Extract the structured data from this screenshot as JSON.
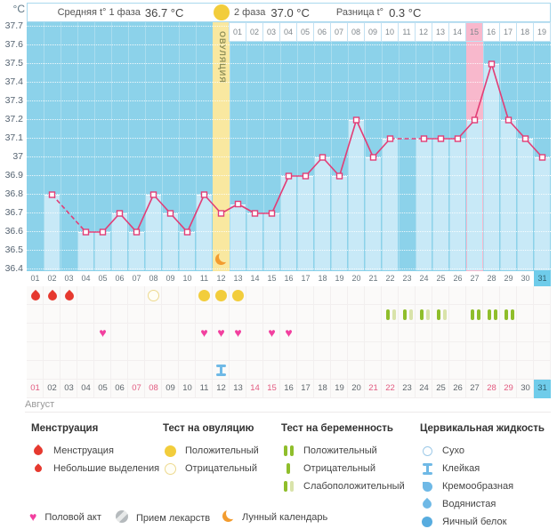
{
  "header": {
    "unit": "°C",
    "phase1_label": "Средняя t° 1 фаза",
    "phase1_value": "36.7 °C",
    "phase2_label": "2 фаза",
    "phase2_value": "37.0 °C",
    "diff_label": "Разница t°",
    "diff_value": "0.3 °C",
    "ovulation_label": "ОВУЛЯЦИЯ"
  },
  "month_label": "Август",
  "chart_data": {
    "type": "line",
    "title": "Basal body temperature cycle chart",
    "unit": "°C",
    "ylim": [
      36.4,
      37.7
    ],
    "ytick_step": 0.1,
    "x_days": [
      1,
      2,
      3,
      4,
      5,
      6,
      7,
      8,
      9,
      10,
      11,
      12,
      13,
      14,
      15,
      16,
      17,
      18,
      19,
      20,
      21,
      22,
      23,
      24,
      25,
      26,
      27,
      28,
      29,
      30,
      31
    ],
    "temperatures_c": [
      null,
      36.8,
      null,
      36.6,
      36.6,
      36.7,
      36.6,
      36.8,
      36.7,
      36.6,
      36.8,
      36.7,
      36.75,
      36.7,
      36.7,
      36.9,
      36.9,
      37.0,
      36.9,
      37.2,
      37.0,
      37.1,
      null,
      37.1,
      37.1,
      37.1,
      37.2,
      37.5,
      37.2,
      37.1,
      37.0
    ],
    "ovulation_day": 12,
    "period_expected_day": 27,
    "today_day": 31,
    "phase2_day_labels": [
      "01",
      "02",
      "03",
      "04",
      "05",
      "06",
      "07",
      "08",
      "09",
      "10",
      "11",
      "12",
      "13",
      "14",
      "15",
      "16",
      "17",
      "18",
      "19"
    ],
    "phase2_highlight_label": "15",
    "weekend_days": [
      1,
      7,
      8,
      14,
      15,
      21,
      22,
      28,
      29
    ],
    "events": {
      "menstruation_days": [
        1,
        2,
        3
      ],
      "ovulation_test_negative_days": [
        8
      ],
      "ovulation_test_positive_days": [
        11,
        12,
        13
      ],
      "pregnancy_test_weak_positive_days": [
        22,
        23,
        24,
        25
      ],
      "pregnancy_test_positive_days": [
        27,
        28,
        29
      ],
      "intercourse_days": [
        5,
        11,
        12,
        13,
        15,
        16
      ],
      "sticky_cervical_fluid_days": [
        12
      ],
      "lunar_calendar_day": 12
    }
  },
  "colors": {
    "chart_bg": "#8CD2EA",
    "bar": "#C8E9F7",
    "ovulation_column": "#F9E8A0",
    "expected_period_column": "#F8B8CC",
    "line": "#E23D76",
    "today_highlight": "#6FCCEA",
    "weekend_text": "#E25B80",
    "menstruation_red": "#E6392F",
    "ovulation_test_yellow": "#F2CD3C",
    "heart_pink": "#F23F9F",
    "pregnancy_test_green": "#8FBE2B",
    "pregnancy_test_green_light": "#D9E3AA",
    "cervical_fluid_blue": "#6FB9E6",
    "moon_orange": "#F39C2F"
  },
  "legend": {
    "menstruation": {
      "title": "Менструация",
      "items": [
        {
          "icon": "menstruation-drop-icon",
          "label": "Менструация"
        },
        {
          "icon": "spotting-drop-icon",
          "label": "Небольшие выделения"
        }
      ]
    },
    "ovulation_test": {
      "title": "Тест на овуляцию",
      "items": [
        {
          "icon": "ovulation-positive-icon",
          "label": "Положительный"
        },
        {
          "icon": "ovulation-negative-icon",
          "label": "Отрицательный"
        }
      ]
    },
    "pregnancy_test": {
      "title": "Тест на беременность",
      "items": [
        {
          "icon": "pregnancy-positive-icon",
          "label": "Положительный"
        },
        {
          "icon": "pregnancy-negative-icon",
          "label": "Отрицательный"
        },
        {
          "icon": "pregnancy-weak-positive-icon",
          "label": "Слабоположительный"
        }
      ]
    },
    "cervical_fluid": {
      "title": "Цервикальная жидкость",
      "items": [
        {
          "icon": "dry-icon",
          "label": "Сухо"
        },
        {
          "icon": "sticky-icon",
          "label": "Клейкая"
        },
        {
          "icon": "creamy-icon",
          "label": "Кремообразная"
        },
        {
          "icon": "watery-icon",
          "label": "Водянистая"
        },
        {
          "icon": "eggwhite-icon",
          "label": "Яичный белок"
        }
      ]
    },
    "extra": [
      {
        "icon": "intercourse-heart-icon",
        "label": "Половой акт"
      },
      {
        "icon": "medication-pill-icon",
        "label": "Прием лекарств"
      },
      {
        "icon": "lunar-calendar-moon-icon",
        "label": "Лунный календарь"
      }
    ]
  }
}
